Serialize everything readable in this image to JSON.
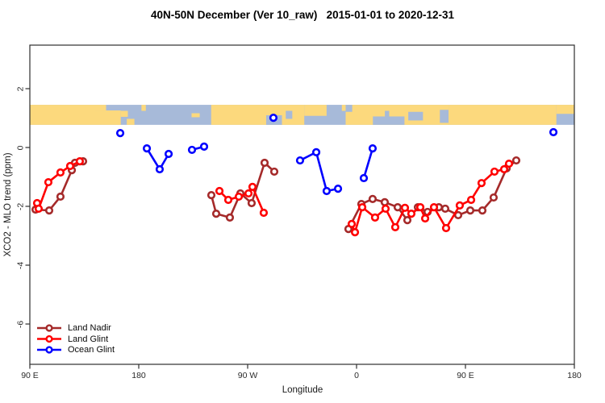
{
  "chart_data": {
    "type": "line",
    "title": "40N-50N December (Ver 10_raw)   2015-01-01 to 2020-12-31",
    "xlabel": "Longitude",
    "ylabel": "XCO2 - MLO trend (ppm)",
    "x_axis": {
      "note": "degrees eastward from 90E; axis wraps 90E-180-90W-0-90E-180",
      "range_deg": [
        0,
        450
      ],
      "ticks": [
        {
          "deg": 0,
          "label": "90 E"
        },
        {
          "deg": 90,
          "label": "180"
        },
        {
          "deg": 180,
          "label": "90 W"
        },
        {
          "deg": 270,
          "label": "0"
        },
        {
          "deg": 360,
          "label": "90 E"
        },
        {
          "deg": 450,
          "label": "180"
        }
      ]
    },
    "y_axis": {
      "range": [
        -7.4,
        3.5
      ],
      "ticks": [
        {
          "val": 2,
          "label": "2"
        },
        {
          "val": 0,
          "label": "0"
        },
        {
          "val": -2,
          "label": "-2"
        },
        {
          "val": -4,
          "label": "-4"
        },
        {
          "val": -6,
          "label": "-6"
        }
      ]
    },
    "map_band": {
      "value_top": 1.45,
      "value_bottom": 0.77,
      "land_color": "#FCD97D",
      "ocean_color": "#A7BAD9",
      "patches": [
        {
          "t": "land",
          "x0": 0.0,
          "x1": 0.12,
          "y0": 0.0,
          "y1": 1.0
        },
        {
          "t": "land",
          "x0": 0.12,
          "x1": 0.167,
          "y0": 0.28,
          "y1": 1.0
        },
        {
          "t": "land",
          "x0": 0.12,
          "x1": 0.14,
          "y0": 0.0,
          "y1": 0.28
        },
        {
          "t": "land",
          "x0": 0.167,
          "x1": 0.18,
          "y0": 0.3,
          "y1": 0.6
        },
        {
          "t": "land",
          "x0": 0.178,
          "x1": 0.192,
          "y0": 0.7,
          "y1": 1.0
        },
        {
          "t": "land",
          "x0": 0.205,
          "x1": 0.213,
          "y0": 0.0,
          "y1": 0.3
        },
        {
          "t": "land",
          "x0": 0.297,
          "x1": 0.312,
          "y0": 0.42,
          "y1": 0.62
        },
        {
          "t": "land",
          "x0": 0.333,
          "x1": 0.504,
          "y0": 0.0,
          "y1": 1.0
        },
        {
          "t": "sea",
          "x0": 0.434,
          "x1": 0.463,
          "y0": 0.52,
          "y1": 1.0
        },
        {
          "t": "sea",
          "x0": 0.47,
          "x1": 0.482,
          "y0": 0.3,
          "y1": 0.7
        },
        {
          "t": "land",
          "x0": 0.504,
          "x1": 0.545,
          "y0": 0.0,
          "y1": 0.55
        },
        {
          "t": "land",
          "x0": 0.573,
          "x1": 0.58,
          "y0": 0.0,
          "y1": 0.3
        },
        {
          "t": "land",
          "x0": 0.58,
          "x1": 0.769,
          "y0": 0.0,
          "y1": 1.0
        },
        {
          "t": "sea",
          "x0": 0.58,
          "x1": 0.592,
          "y0": 0.0,
          "y1": 0.35
        },
        {
          "t": "sea",
          "x0": 0.63,
          "x1": 0.688,
          "y0": 0.58,
          "y1": 1.0
        },
        {
          "t": "sea",
          "x0": 0.652,
          "x1": 0.66,
          "y0": 0.3,
          "y1": 0.58
        },
        {
          "t": "sea",
          "x0": 0.695,
          "x1": 0.722,
          "y0": 0.35,
          "y1": 0.78
        },
        {
          "t": "sea",
          "x0": 0.753,
          "x1": 0.769,
          "y0": 0.25,
          "y1": 0.9
        },
        {
          "t": "land",
          "x0": 0.769,
          "x1": 0.967,
          "y0": 0.0,
          "y1": 1.0
        },
        {
          "t": "land",
          "x0": 0.967,
          "x1": 1.0,
          "y0": 0.0,
          "y1": 0.45
        }
      ]
    },
    "series": [
      {
        "name": "Land Nadir",
        "color": "#A52A2A",
        "clusters": [
          [
            [
              4.7,
              -2.11
            ],
            [
              16,
              -2.14
            ],
            [
              25.3,
              -1.67
            ],
            [
              34.7,
              -0.77
            ],
            [
              37.3,
              -0.52
            ],
            [
              44,
              -0.47
            ]
          ],
          [
            [
              150,
              -1.62
            ],
            [
              154,
              -2.25
            ],
            [
              165.3,
              -2.38
            ],
            [
              174,
              -1.56
            ],
            [
              183.3,
              -1.89
            ],
            [
              194,
              -0.52
            ],
            [
              202,
              -0.82
            ]
          ],
          [
            [
              263.3,
              -2.77
            ],
            [
              274,
              -1.92
            ],
            [
              283.3,
              -1.75
            ],
            [
              293.3,
              -1.86
            ],
            [
              304,
              -2.03
            ],
            [
              312,
              -2.47
            ],
            [
              320.7,
              -2.03
            ],
            [
              328.7,
              -2.19
            ],
            [
              338,
              -2.03
            ],
            [
              343.3,
              -2.08
            ],
            [
              354,
              -2.3
            ],
            [
              364,
              -2.14
            ],
            [
              374,
              -2.14
            ],
            [
              383.3,
              -1.7
            ],
            [
              394,
              -0.71
            ],
            [
              402,
              -0.44
            ]
          ]
        ]
      },
      {
        "name": "Land Glint",
        "color": "#FF0000",
        "clusters": [
          [
            [
              6,
              -1.89
            ],
            [
              7.3,
              -2.08
            ],
            [
              15.3,
              -1.18
            ],
            [
              25.3,
              -0.85
            ],
            [
              33.3,
              -0.63
            ],
            [
              41.3,
              -0.47
            ]
          ],
          [
            [
              156.7,
              -1.48
            ],
            [
              164,
              -1.78
            ],
            [
              172.7,
              -1.67
            ],
            [
              180.7,
              -1.56
            ],
            [
              184,
              -1.34
            ],
            [
              193.3,
              -2.22
            ]
          ],
          [
            [
              266,
              -2.6
            ],
            [
              268.7,
              -2.88
            ],
            [
              274.7,
              -2.03
            ],
            [
              285.3,
              -2.38
            ],
            [
              294,
              -2.08
            ],
            [
              302,
              -2.71
            ],
            [
              310,
              -2.05
            ],
            [
              315.3,
              -2.25
            ],
            [
              322.7,
              -2.03
            ],
            [
              326.7,
              -2.41
            ],
            [
              334,
              -2.03
            ],
            [
              344,
              -2.74
            ],
            [
              355.3,
              -1.97
            ],
            [
              364.7,
              -1.78
            ],
            [
              373.3,
              -1.21
            ],
            [
              384,
              -0.82
            ],
            [
              392,
              -0.74
            ],
            [
              396,
              -0.55
            ]
          ]
        ]
      },
      {
        "name": "Ocean Glint",
        "color": "#0000FF",
        "clusters": [
          [
            [
              74.7,
              0.49
            ]
          ],
          [
            [
              96.7,
              -0.03
            ],
            [
              107.3,
              -0.74
            ],
            [
              114.7,
              -0.22
            ]
          ],
          [
            [
              134,
              -0.08
            ],
            [
              144,
              0.03
            ]
          ],
          [
            [
              201.3,
              1.01
            ]
          ],
          [
            [
              223.3,
              -0.44
            ],
            [
              236.7,
              -0.16
            ],
            [
              245.3,
              -1.48
            ],
            [
              254.7,
              -1.4
            ]
          ],
          [
            [
              276,
              -1.04
            ],
            [
              283.3,
              -0.03
            ]
          ],
          [
            [
              432.7,
              0.52
            ]
          ]
        ]
      }
    ],
    "legend": {
      "position": "bottom-left",
      "items": [
        "Land Nadir",
        "Land Glint",
        "Ocean Glint"
      ]
    }
  }
}
